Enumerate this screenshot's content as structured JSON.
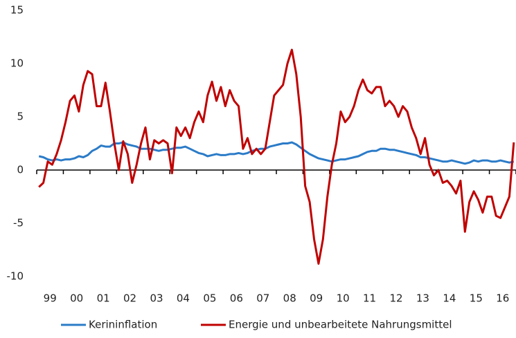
{
  "chart_data": {
    "type": "line",
    "categories": [
      null,
      null,
      "99",
      null,
      null,
      null,
      null,
      null,
      "00",
      null,
      null,
      null,
      null,
      null,
      "01",
      null,
      null,
      null,
      null,
      null,
      "02",
      null,
      null,
      null,
      null,
      null,
      "03",
      null,
      null,
      null,
      null,
      null,
      "04",
      null,
      null,
      null,
      null,
      null,
      "05",
      null,
      null,
      null,
      null,
      null,
      "06",
      null,
      null,
      null,
      null,
      null,
      "07",
      null,
      null,
      null,
      null,
      null,
      "08",
      null,
      null,
      null,
      null,
      null,
      "09",
      null,
      null,
      null,
      null,
      null,
      "10",
      null,
      null,
      null,
      null,
      null,
      "11",
      null,
      null,
      null,
      null,
      null,
      "12",
      null,
      null,
      null,
      null,
      null,
      "13",
      null,
      null,
      null,
      null,
      null,
      "14",
      null,
      null,
      null,
      null,
      null,
      "15",
      null,
      null,
      null,
      null,
      null,
      "16",
      null,
      null,
      null
    ],
    "series": [
      {
        "name": "Kerininflation",
        "color": "#2b7bc8",
        "values": [
          1.3,
          1.2,
          1.0,
          0.9,
          1.0,
          0.9,
          1.0,
          1.0,
          1.1,
          1.3,
          1.2,
          1.4,
          1.8,
          2.0,
          2.3,
          2.2,
          2.2,
          2.5,
          2.5,
          2.6,
          2.4,
          2.3,
          2.2,
          2.0,
          2.0,
          2.0,
          1.9,
          1.8,
          1.9,
          1.9,
          2.0,
          2.1,
          2.1,
          2.2,
          2.0,
          1.8,
          1.6,
          1.5,
          1.3,
          1.4,
          1.5,
          1.4,
          1.4,
          1.5,
          1.5,
          1.6,
          1.5,
          1.6,
          1.8,
          1.9,
          2.0,
          2.0,
          2.2,
          2.3,
          2.4,
          2.5,
          2.5,
          2.6,
          2.4,
          2.1,
          1.8,
          1.5,
          1.3,
          1.1,
          1.0,
          0.9,
          0.8,
          0.9,
          1.0,
          1.0,
          1.1,
          1.2,
          1.3,
          1.5,
          1.7,
          1.8,
          1.8,
          2.0,
          2.0,
          1.9,
          1.9,
          1.8,
          1.7,
          1.6,
          1.5,
          1.4,
          1.2,
          1.2,
          1.1,
          1.0,
          0.9,
          0.8,
          0.8,
          0.9,
          0.8,
          0.7,
          0.6,
          0.7,
          0.9,
          0.8,
          0.9,
          0.9,
          0.8,
          0.8,
          0.9,
          0.8,
          0.7,
          0.8
        ]
      },
      {
        "name": "Energie und unbearbeitete Nahrungsmittel",
        "color": "#c00000",
        "values": [
          -1.6,
          -1.2,
          0.8,
          0.5,
          1.5,
          2.8,
          4.5,
          6.5,
          7.0,
          5.5,
          8.0,
          9.3,
          9.0,
          6.0,
          6.0,
          8.2,
          5.5,
          2.5,
          0,
          2.7,
          1.5,
          -1.2,
          0.5,
          2.5,
          4.0,
          1.0,
          2.8,
          2.5,
          2.8,
          2.5,
          -0.3,
          4.0,
          3.2,
          4.0,
          3.0,
          4.5,
          5.5,
          4.5,
          7.0,
          8.3,
          6.5,
          7.8,
          6.0,
          7.5,
          6.5,
          6.0,
          2.0,
          3.0,
          1.5,
          2.0,
          1.5,
          2.0,
          4.5,
          7.0,
          7.5,
          8.0,
          10.0,
          11.3,
          9.0,
          5.0,
          -1.5,
          -3.0,
          -6.5,
          -8.8,
          -6.5,
          -2.5,
          0.5,
          2.5,
          5.5,
          4.5,
          5.0,
          6.0,
          7.5,
          8.5,
          7.5,
          7.2,
          7.8,
          7.8,
          6.0,
          6.5,
          6.0,
          5.0,
          6.0,
          5.5,
          4.0,
          3.0,
          1.5,
          3.0,
          0.5,
          -0.5,
          0,
          -1.2,
          -1.0,
          -1.5,
          -2.2,
          -1.0,
          -5.8,
          -3.0,
          -2.0,
          -2.8,
          -4.0,
          -2.5,
          -2.5,
          -4.3,
          -4.5,
          -3.5,
          -2.5,
          2.6
        ]
      }
    ],
    "ylim": [
      -10,
      15
    ],
    "yticks": [
      -10,
      -5,
      0,
      5,
      10,
      15
    ]
  }
}
